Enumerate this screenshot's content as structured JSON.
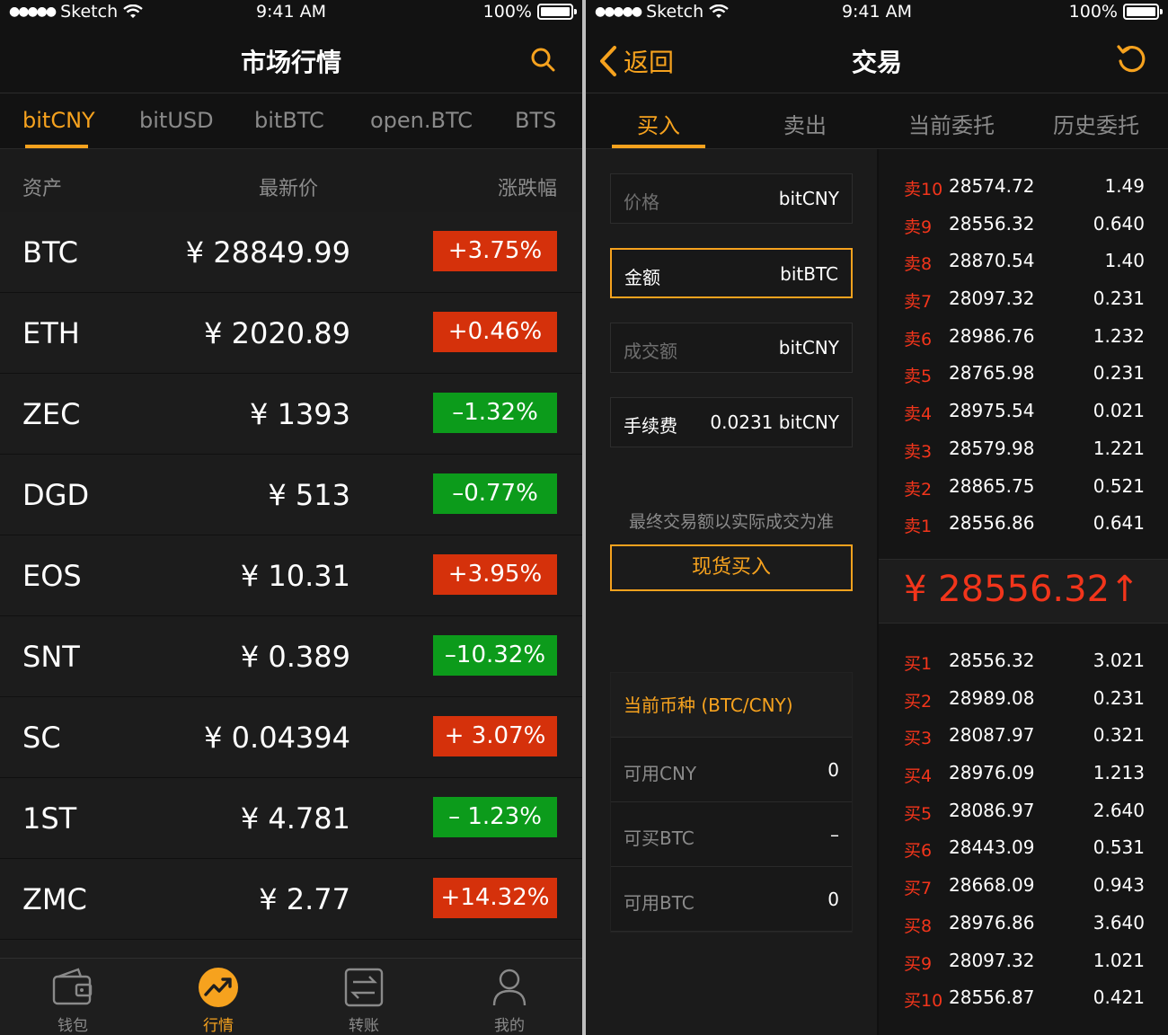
{
  "left": {
    "status": {
      "carrier": "Sketch",
      "time": "9:41 AM",
      "battery": "100%"
    },
    "title": "市场行情",
    "tabs": [
      "bitCNY",
      "bitUSD",
      "bitBTC",
      "open.BTC",
      "BTS"
    ],
    "header": {
      "asset": "资产",
      "price": "最新价",
      "change": "涨跌幅"
    },
    "rows": [
      {
        "asset": "BTC",
        "price": "¥ 28849.99",
        "change": "+3.75%",
        "dir": "up"
      },
      {
        "asset": "ETH",
        "price": "¥ 2020.89",
        "change": "+0.46%",
        "dir": "up"
      },
      {
        "asset": "ZEC",
        "price": "¥ 1393",
        "change": "–1.32%",
        "dir": "down"
      },
      {
        "asset": "DGD",
        "price": "¥ 513",
        "change": "–0.77%",
        "dir": "down"
      },
      {
        "asset": "EOS",
        "price": "¥ 10.31",
        "change": "+3.95%",
        "dir": "up"
      },
      {
        "asset": "SNT",
        "price": "¥ 0.389",
        "change": "–10.32%",
        "dir": "down"
      },
      {
        "asset": "SC",
        "price": "¥ 0.04394",
        "change": "+ 3.07%",
        "dir": "up"
      },
      {
        "asset": "1ST",
        "price": "¥ 4.781",
        "change": "– 1.23%",
        "dir": "down"
      },
      {
        "asset": "ZMC",
        "price": "¥ 2.77",
        "change": "+14.32%",
        "dir": "up"
      }
    ],
    "tabbar": [
      "钱包",
      "行情",
      "转账",
      "我的"
    ],
    "colors": {
      "accent": "#f6a21e",
      "up": "#d5310b",
      "down": "#0c9b1b"
    }
  },
  "right": {
    "status": {
      "carrier": "Sketch",
      "time": "9:41 AM",
      "battery": "100%"
    },
    "back": "返回",
    "title": "交易",
    "tabs": [
      "买入",
      "卖出",
      "当前委托",
      "历史委托"
    ],
    "fields": [
      {
        "label": "价格",
        "unit": "bitCNY"
      },
      {
        "label": "金额",
        "unit": "bitBTC"
      },
      {
        "label": "成交额",
        "unit": "bitCNY"
      },
      {
        "label": "手续费",
        "unit": "0.0231 bitCNY"
      }
    ],
    "note": "最终交易额以实际成交为准",
    "buy_button": "现货买入",
    "info": {
      "title": "当前币种 (BTC/CNY)",
      "rows": [
        {
          "k": "可用CNY",
          "v": "0"
        },
        {
          "k": "可买BTC",
          "v": "–"
        },
        {
          "k": "可用BTC",
          "v": "0"
        }
      ]
    },
    "sells": [
      {
        "lvl": "卖10",
        "price": "28574.72",
        "qty": "1.49"
      },
      {
        "lvl": "卖9",
        "price": "28556.32",
        "qty": "0.640"
      },
      {
        "lvl": "卖8",
        "price": "28870.54",
        "qty": "1.40"
      },
      {
        "lvl": "卖7",
        "price": "28097.32",
        "qty": "0.231"
      },
      {
        "lvl": "卖6",
        "price": "28986.76",
        "qty": "1.232"
      },
      {
        "lvl": "卖5",
        "price": "28765.98",
        "qty": "0.231"
      },
      {
        "lvl": "卖4",
        "price": "28975.54",
        "qty": "0.021"
      },
      {
        "lvl": "卖3",
        "price": "28579.98",
        "qty": "1.221"
      },
      {
        "lvl": "卖2",
        "price": "28865.75",
        "qty": "0.521"
      },
      {
        "lvl": "卖1",
        "price": "28556.86",
        "qty": "0.641"
      }
    ],
    "last_price": "¥ 28556.32↑",
    "buys": [
      {
        "lvl": "买1",
        "price": "28556.32",
        "qty": "3.021"
      },
      {
        "lvl": "买2",
        "price": "28989.08",
        "qty": "0.231"
      },
      {
        "lvl": "买3",
        "price": "28087.97",
        "qty": "0.321"
      },
      {
        "lvl": "买4",
        "price": "28976.09",
        "qty": "1.213"
      },
      {
        "lvl": "买5",
        "price": "28086.97",
        "qty": "2.640"
      },
      {
        "lvl": "买6",
        "price": "28443.09",
        "qty": "0.531"
      },
      {
        "lvl": "买7",
        "price": "28668.09",
        "qty": "0.943"
      },
      {
        "lvl": "买8",
        "price": "28976.86",
        "qty": "3.640"
      },
      {
        "lvl": "买9",
        "price": "28097.32",
        "qty": "1.021"
      },
      {
        "lvl": "买10",
        "price": "28556.87",
        "qty": "0.421"
      }
    ]
  }
}
